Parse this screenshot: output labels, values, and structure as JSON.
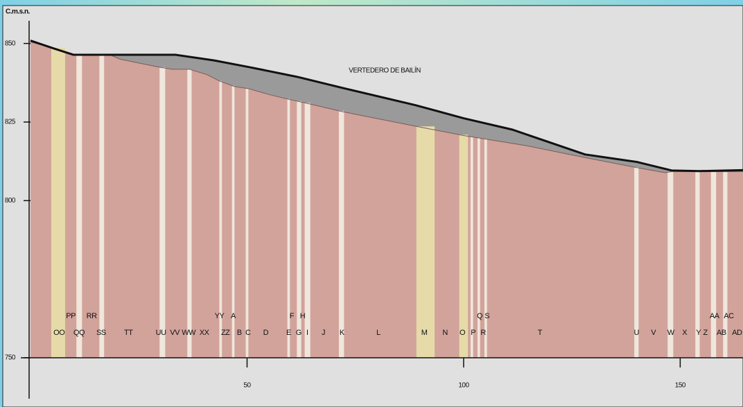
{
  "chart_data": {
    "type": "profile",
    "y_label": "C.m.s.n.",
    "annotation": "VERTEDERO DE BAILÍN",
    "xlim": [
      0,
      164.5
    ],
    "xticks": [
      50,
      100,
      150
    ],
    "ylim": [
      750,
      855
    ],
    "yticks": [
      750,
      800,
      825,
      850
    ],
    "surface": {
      "color": "#111111",
      "fill": "#9a9a9a",
      "x": [
        0,
        5.4,
        9.9,
        18.3,
        33.5,
        42.4,
        50.4,
        61.5,
        72.8,
        88.8,
        100,
        111.2,
        128,
        140,
        148,
        154.5,
        164.5
      ],
      "y": [
        850.9,
        848.4,
        846.4,
        846.4,
        846.4,
        844.6,
        842.5,
        839.4,
        835.6,
        830.4,
        826.2,
        822.6,
        814.7,
        812.3,
        809.6,
        809.4,
        809.7
      ]
    },
    "bedrock": {
      "color": "#d2a39b",
      "x": [
        0,
        5.4,
        9.9,
        18.3,
        20.7,
        29.5,
        32.7,
        36.7,
        40.7,
        43.7,
        47.1,
        50.4,
        55.2,
        60,
        64,
        72,
        88.8,
        100,
        114.4,
        128,
        140,
        146.5,
        148,
        164.5
      ],
      "y": [
        850.5,
        848.4,
        846.4,
        846.4,
        845,
        842.5,
        841.8,
        841.8,
        840.1,
        838,
        836.3,
        835.6,
        833.7,
        832.1,
        830.9,
        828.3,
        823.7,
        820.7,
        817.5,
        813.7,
        810.5,
        808.9,
        809.2,
        809.2
      ]
    },
    "strips": [
      {
        "color": "#e6dba8",
        "ranges": [
          [
            4.8,
            8.0
          ],
          [
            89.1,
            93.3
          ],
          [
            99.0,
            101.0
          ]
        ]
      },
      {
        "color": "#efe6dc",
        "ranges": [
          [
            10.6,
            11.9
          ],
          [
            15.9,
            17.0
          ],
          [
            29.8,
            31.1
          ],
          [
            36.2,
            37.2
          ],
          [
            43.6,
            44.2
          ],
          [
            46.5,
            47.1
          ],
          [
            49.7,
            50.3
          ],
          [
            59.3,
            59.9
          ],
          [
            61.5,
            62.5
          ],
          [
            63.3,
            64.6
          ],
          [
            71.2,
            72.4
          ],
          [
            101.6,
            102.2
          ],
          [
            103.2,
            103.8
          ],
          [
            104.8,
            105.4
          ],
          [
            139.4,
            140.4
          ],
          [
            147.1,
            148.4
          ],
          [
            153.5,
            154.5
          ],
          [
            157.1,
            158.3
          ],
          [
            159.9,
            160.9
          ]
        ]
      }
    ],
    "labels": {
      "upper": [
        {
          "text": "PP",
          "x": 9.3
        },
        {
          "text": "RR",
          "x": 14.1
        },
        {
          "text": "YY",
          "x": 43.6
        },
        {
          "text": "A",
          "x": 46.8
        },
        {
          "text": "F",
          "x": 60.3
        },
        {
          "text": "H",
          "x": 62.8
        },
        {
          "text": "Q",
          "x": 103.7
        },
        {
          "text": "S",
          "x": 105.4
        },
        {
          "text": "AA",
          "x": 157.9
        },
        {
          "text": "AC",
          "x": 161.2
        }
      ],
      "lower": [
        {
          "text": "OO",
          "x": 6.6
        },
        {
          "text": "QQ",
          "x": 11.2
        },
        {
          "text": "SS",
          "x": 16.3
        },
        {
          "text": "TT",
          "x": 22.6
        },
        {
          "text": "UU",
          "x": 30.1
        },
        {
          "text": "VV",
          "x": 33.3
        },
        {
          "text": "WW",
          "x": 36.5
        },
        {
          "text": "XX",
          "x": 40.1
        },
        {
          "text": "ZZ",
          "x": 45.0
        },
        {
          "text": "B",
          "x": 48.2
        },
        {
          "text": "C",
          "x": 50.2
        },
        {
          "text": "D",
          "x": 54.3
        },
        {
          "text": "E",
          "x": 59.6
        },
        {
          "text": "G",
          "x": 61.9
        },
        {
          "text": "I",
          "x": 63.9
        },
        {
          "text": "J",
          "x": 67.6
        },
        {
          "text": "K",
          "x": 71.9
        },
        {
          "text": "L",
          "x": 80.3
        },
        {
          "text": "M",
          "x": 90.9
        },
        {
          "text": "N",
          "x": 95.7
        },
        {
          "text": "O",
          "x": 99.7
        },
        {
          "text": "P",
          "x": 102.2
        },
        {
          "text": "R",
          "x": 104.5
        },
        {
          "text": "T",
          "x": 117.6
        },
        {
          "text": "U",
          "x": 139.9
        },
        {
          "text": "V",
          "x": 143.8
        },
        {
          "text": "W",
          "x": 147.8
        },
        {
          "text": "X",
          "x": 151.0
        },
        {
          "text": "Y",
          "x": 154.2
        },
        {
          "text": "Z",
          "x": 155.8
        },
        {
          "text": "AB",
          "x": 159.5
        },
        {
          "text": "AD",
          "x": 163.1
        }
      ]
    }
  }
}
